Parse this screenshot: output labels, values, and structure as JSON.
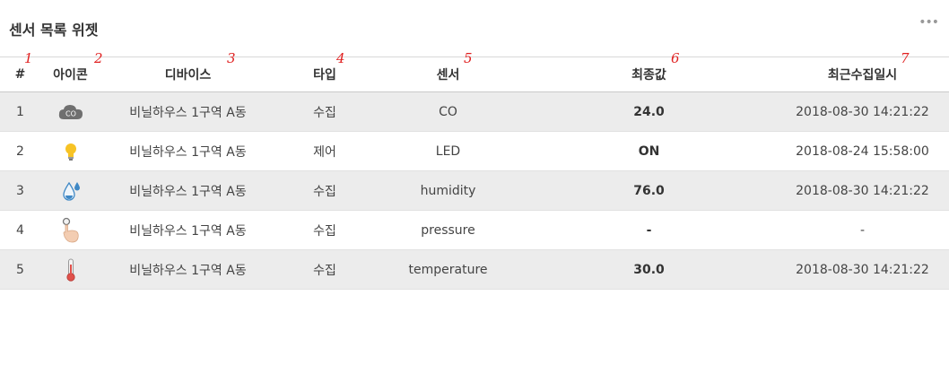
{
  "widget": {
    "title": "센서 목록 위젯",
    "more": "•••"
  },
  "markers": [
    "1",
    "2",
    "3",
    "4",
    "5",
    "6",
    "7"
  ],
  "columns": [
    "#",
    "아이콘",
    "디바이스",
    "타입",
    "센서",
    "최종값",
    "최근수집일시"
  ],
  "rows": [
    {
      "no": "1",
      "icon": "co-cloud-icon",
      "icon_text": "CO",
      "device": "비닐하우스 1구역 A동",
      "type": "수집",
      "sensor": "CO",
      "value": "24.0",
      "datetime": "2018-08-30 14:21:22"
    },
    {
      "no": "2",
      "icon": "bulb-icon",
      "device": "비닐하우스 1구역 A동",
      "type": "제어",
      "sensor": "LED",
      "value": "ON",
      "datetime": "2018-08-24 15:58:00"
    },
    {
      "no": "3",
      "icon": "water-drop-icon",
      "device": "비닐하우스 1구역 A동",
      "type": "수집",
      "sensor": "humidity",
      "value": "76.0",
      "datetime": "2018-08-30 14:21:22"
    },
    {
      "no": "4",
      "icon": "finger-press-icon",
      "device": "비닐하우스 1구역 A동",
      "type": "수집",
      "sensor": "pressure",
      "value": "-",
      "datetime": "-"
    },
    {
      "no": "5",
      "icon": "thermometer-icon",
      "device": "비닐하우스 1구역 A동",
      "type": "수집",
      "sensor": "temperature",
      "value": "30.0",
      "datetime": "2018-08-30 14:21:22"
    }
  ],
  "colors": {
    "row_odd": "#ececec",
    "row_even": "#ffffff",
    "marker": "#e02020"
  }
}
